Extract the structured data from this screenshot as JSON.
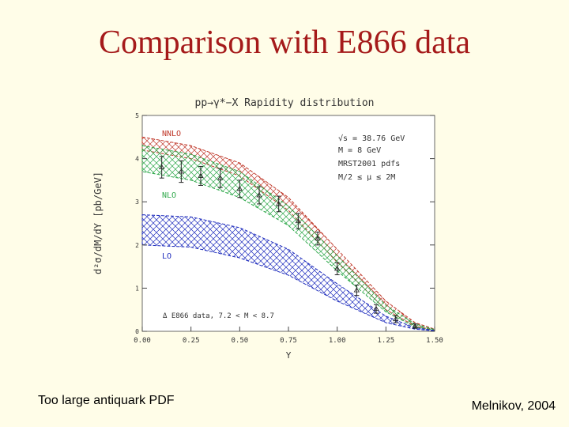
{
  "slide": {
    "title": "Comparison with E866 data",
    "caption_left": "Too large antiquark PDF",
    "caption_right": "Melnikov, 2004"
  },
  "chart_data": {
    "type": "area",
    "title": "pp→γ*−X  Rapidity distribution",
    "xlabel": "Y",
    "ylabel": "d²σ/dM/dY [pb/GeV]",
    "xlim": [
      0,
      1.5
    ],
    "ylim": [
      0,
      5
    ],
    "x_ticks": [
      "0.00",
      "0.25",
      "0.50",
      "0.75",
      "1.00",
      "1.25",
      "1.50"
    ],
    "y_ticks": [
      "0",
      "1",
      "2",
      "3",
      "4",
      "5"
    ],
    "annotations": [
      "√s = 38.76 GeV",
      "M = 8 GeV",
      "MRST2001 pdfs",
      "M/2 ≤ μ ≤ 2M"
    ],
    "legend_data": "Δ E866 data, 7.2 < M < 8.7",
    "x": [
      0,
      0.25,
      0.5,
      0.75,
      1.0,
      1.25,
      1.4,
      1.5
    ],
    "series": [
      {
        "name": "NNLO",
        "color": "#c0392b",
        "upper": [
          4.5,
          4.3,
          3.9,
          3.1,
          1.9,
          0.7,
          0.2,
          0.05
        ],
        "lower": [
          4.2,
          4.0,
          3.6,
          2.8,
          1.6,
          0.5,
          0.12,
          0.03
        ]
      },
      {
        "name": "NLO",
        "color": "#2ea84a",
        "upper": [
          4.3,
          4.1,
          3.7,
          2.9,
          1.75,
          0.6,
          0.17,
          0.04
        ],
        "lower": [
          3.7,
          3.5,
          3.1,
          2.45,
          1.4,
          0.45,
          0.1,
          0.02
        ]
      },
      {
        "name": "LO",
        "color": "#1f2dbd",
        "upper": [
          2.7,
          2.65,
          2.4,
          1.9,
          1.1,
          0.35,
          0.08,
          0.02
        ],
        "lower": [
          2.0,
          1.95,
          1.7,
          1.3,
          0.7,
          0.2,
          0.05,
          0.01
        ]
      }
    ],
    "data_points": {
      "name": "E866 data",
      "x": [
        0.1,
        0.2,
        0.3,
        0.4,
        0.5,
        0.6,
        0.7,
        0.8,
        0.9,
        1.0,
        1.1,
        1.2,
        1.3,
        1.4
      ],
      "y": [
        3.8,
        3.7,
        3.6,
        3.55,
        3.3,
        3.15,
        2.95,
        2.55,
        2.15,
        1.45,
        0.95,
        0.52,
        0.28,
        0.12
      ],
      "err": [
        0.25,
        0.25,
        0.22,
        0.22,
        0.2,
        0.2,
        0.18,
        0.18,
        0.15,
        0.14,
        0.12,
        0.1,
        0.08,
        0.05
      ]
    }
  }
}
